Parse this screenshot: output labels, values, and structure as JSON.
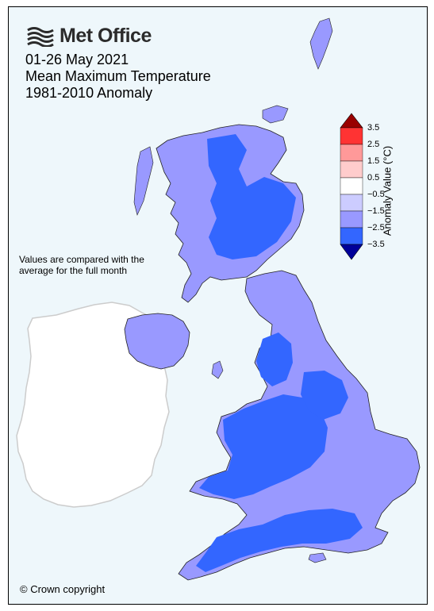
{
  "logo": {
    "text": "Met Office",
    "icon": "met-office-waves-icon",
    "color": "#2b2b2b"
  },
  "title": {
    "line1": "01-26 May 2021",
    "line2": "Mean Maximum Temperature",
    "line3": "1981-2010 Anomaly"
  },
  "note": "Values are compared with the average for the full month",
  "copyright": "© Crown copyright",
  "colorbar": {
    "title": "Anomaly Value (°C)",
    "ticks": [
      "3.5",
      "2.5",
      "1.5",
      "0.5",
      "−0.5",
      "−1.5",
      "−2.5",
      "−3.5"
    ],
    "bins": [
      {
        "range": "2.5 to 3.5",
        "color": "#ff3333"
      },
      {
        "range": "1.5 to 2.5",
        "color": "#ff9999"
      },
      {
        "range": "0.5 to 1.5",
        "color": "#ffcccc"
      },
      {
        "range": "-0.5 to 0.5",
        "color": "#ffffff"
      },
      {
        "range": "-1.5 to -0.5",
        "color": "#ccccff"
      },
      {
        "range": "-2.5 to -1.5",
        "color": "#9999ff"
      },
      {
        "range": "-3.5 to -2.5",
        "color": "#3366ff"
      }
    ],
    "over_color": "#990000",
    "under_color": "#000099"
  },
  "map_colors": {
    "background": "#eef7fb",
    "ireland_fill": "#ffffff",
    "ireland_outline": "#cccccc",
    "light_anomaly": "#9999ff",
    "strong_anomaly": "#3366ff",
    "boundary": "#222222"
  }
}
